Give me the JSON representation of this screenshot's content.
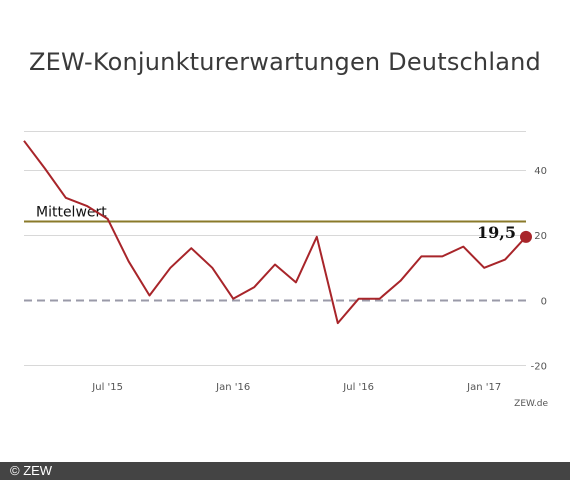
{
  "title": "ZEW-Konjunkturerwartungen Deutschland",
  "footer": {
    "copyright": "© ZEW"
  },
  "colors": {
    "line": "#a8252a",
    "mean": "#8a7a2a",
    "zero": "#9a9aa8",
    "grid": "#d8d8d8",
    "text": "#555555"
  },
  "chart_data": {
    "type": "line",
    "title": "ZEW-Konjunkturerwartungen Deutschland",
    "xlabel": "",
    "ylabel": "",
    "source": "ZEW.de",
    "x_range": [
      "2015-03",
      "2017-03"
    ],
    "ylim": [
      -22,
      52
    ],
    "y_ticks": [
      40,
      20,
      0,
      -20
    ],
    "x_ticks": [
      {
        "label": "Jul '15",
        "x": "2015-07"
      },
      {
        "label": "Jan '16",
        "x": "2016-01"
      },
      {
        "label": "Jul '16",
        "x": "2016-07"
      },
      {
        "label": "Jan '17",
        "x": "2017-01"
      }
    ],
    "x": [
      "2015-03",
      "2015-04",
      "2015-05",
      "2015-06",
      "2015-07",
      "2015-08",
      "2015-09",
      "2015-10",
      "2015-11",
      "2015-12",
      "2016-01",
      "2016-02",
      "2016-03",
      "2016-04",
      "2016-05",
      "2016-06",
      "2016-07",
      "2016-08",
      "2016-09",
      "2016-10",
      "2016-11",
      "2016-12",
      "2017-01",
      "2017-02",
      "2017-03"
    ],
    "values": [
      49.0,
      40.5,
      31.5,
      29.0,
      25.0,
      12.0,
      1.5,
      10.0,
      16.0,
      10.0,
      0.5,
      4.0,
      11.0,
      5.5,
      19.5,
      -7.0,
      0.5,
      0.5,
      6.0,
      13.5,
      13.5,
      16.5,
      10.0,
      12.5,
      19.5
    ],
    "reference_lines": [
      {
        "label": "Mittelwert",
        "value": 24.5,
        "style": "solid"
      },
      {
        "label": "",
        "value": 0,
        "style": "dashed"
      }
    ],
    "last_value_label": "19,5",
    "grid": true
  }
}
